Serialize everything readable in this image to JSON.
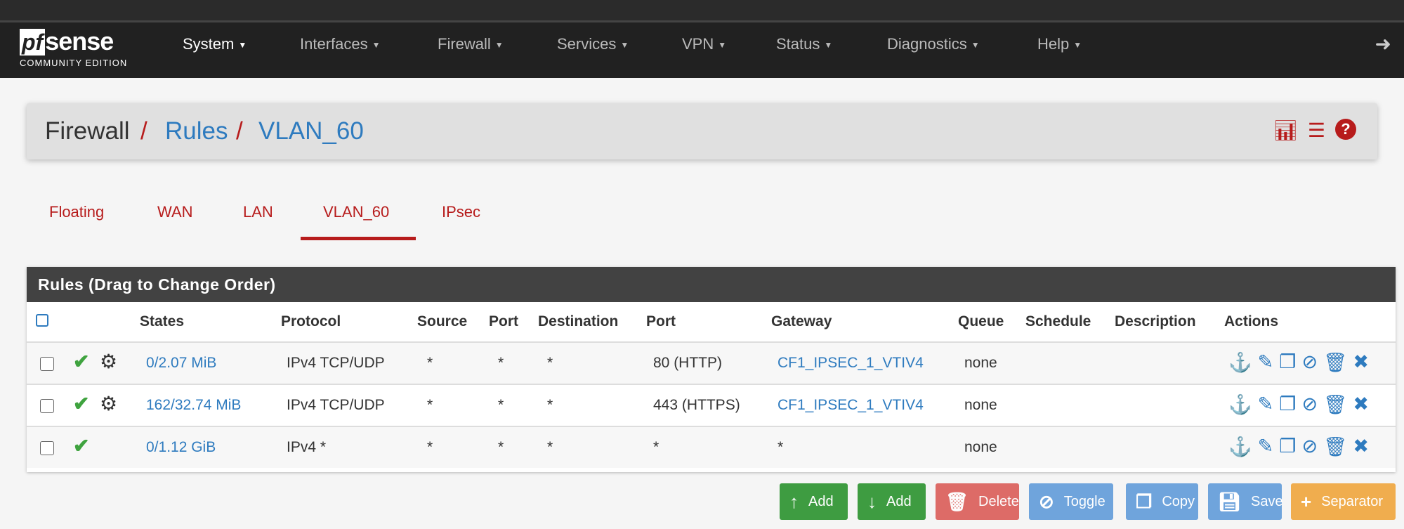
{
  "logo": {
    "brand": "pfsense",
    "edition": "COMMUNITY EDITION"
  },
  "nav": {
    "items": [
      "System",
      "Interfaces",
      "Firewall",
      "Services",
      "VPN",
      "Status",
      "Diagnostics",
      "Help"
    ],
    "logout_icon": "sign-out-icon"
  },
  "breadcrumb": {
    "root": "Firewall",
    "rules": "Rules",
    "current": "VLAN_60",
    "icons": [
      "bar-chart-icon",
      "list-icon",
      "help-icon"
    ]
  },
  "tabs": [
    {
      "label": "Floating"
    },
    {
      "label": "WAN"
    },
    {
      "label": "LAN"
    },
    {
      "label": "VLAN_60",
      "active": true
    },
    {
      "label": "IPsec"
    }
  ],
  "table": {
    "title": "Rules (Drag to Change Order)",
    "headers": [
      "States",
      "Protocol",
      "Source",
      "Port",
      "Destination",
      "Port",
      "Gateway",
      "Queue",
      "Schedule",
      "Description",
      "Actions"
    ],
    "rows": [
      {
        "states": "0/2.07 MiB",
        "protocol": "IPv4 TCP/UDP",
        "source": "*",
        "sport": "*",
        "dest": "*",
        "dport": "80 (HTTP)",
        "gateway": "CF1_IPSEC_1_VTIV4",
        "queue": "none",
        "schedule": "",
        "description": "",
        "advanced": true
      },
      {
        "states": "162/32.74 MiB",
        "protocol": "IPv4 TCP/UDP",
        "source": "*",
        "sport": "*",
        "dest": "*",
        "dport": "443 (HTTPS)",
        "gateway": "CF1_IPSEC_1_VTIV4",
        "queue": "none",
        "schedule": "",
        "description": "",
        "advanced": true
      },
      {
        "states": "0/1.12 GiB",
        "protocol": "IPv4 *",
        "source": "*",
        "sport": "*",
        "dest": "*",
        "dport": "*",
        "gateway": "*",
        "queue": "none",
        "schedule": "",
        "description": "",
        "advanced": false
      }
    ]
  },
  "buttons": {
    "add_top": "Add",
    "add_bottom": "Add",
    "delete": "Delete",
    "toggle": "Toggle",
    "copy": "Copy",
    "save": "Save",
    "separator": "Separator"
  },
  "colors": {
    "accent": "#b71c1c",
    "link": "#2e7bbf",
    "pass": "#3fa33f",
    "nav_bg": "#212121"
  }
}
